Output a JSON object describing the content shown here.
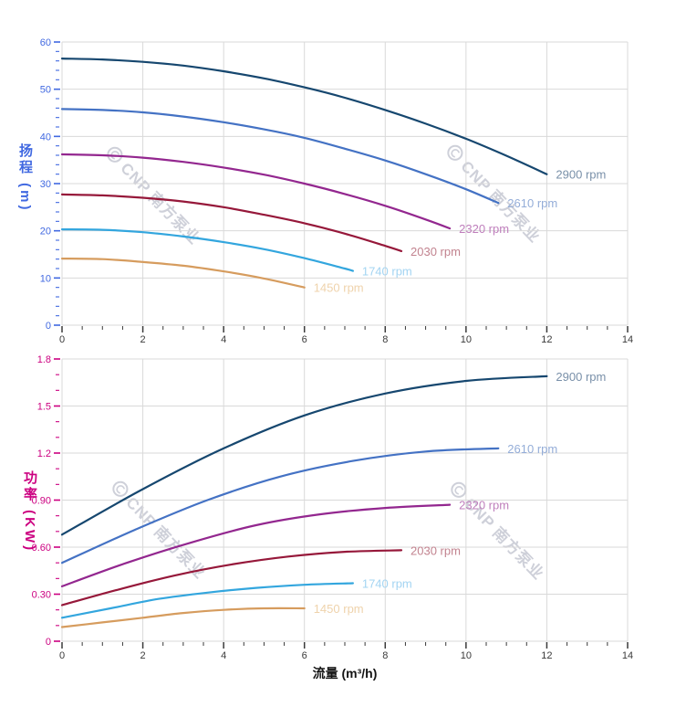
{
  "figure": {
    "xlabel": "流量 (m³/h)"
  },
  "watermark": {
    "text": "CNP 南方泵业"
  },
  "chart_data": [
    {
      "id": "head-curves",
      "type": "line",
      "title": "",
      "xlabel": "",
      "ylabel": "扬程 (m)",
      "xlim": [
        0,
        14
      ],
      "ylim": [
        0,
        60
      ],
      "grid": true,
      "legend_position": "end-of-line-labels",
      "axis_color": "#4169E1",
      "x_tick_labels": [
        "0",
        "2",
        "4",
        "6",
        "8",
        "10",
        "12",
        "14"
      ],
      "x_minor_step": 0.5,
      "y_tick_labels": [
        "0",
        "10",
        "20",
        "30",
        "40",
        "50",
        "60"
      ],
      "y_minor_step": 2,
      "series": [
        {
          "name": "2900 rpm",
          "color": "#16476F",
          "label_color": "#7990A9",
          "points": [
            [
              0,
              56.5
            ],
            [
              1,
              56.3
            ],
            [
              2,
              55.8
            ],
            [
              3,
              55.0
            ],
            [
              4,
              53.8
            ],
            [
              5,
              52.3
            ],
            [
              6,
              50.4
            ],
            [
              7,
              48.2
            ],
            [
              8,
              45.6
            ],
            [
              9,
              42.7
            ],
            [
              10,
              39.5
            ],
            [
              11,
              35.9
            ],
            [
              12,
              32.0
            ]
          ]
        },
        {
          "name": "2610 rpm",
          "color": "#4472C4",
          "label_color": "#94ADD8",
          "points": [
            [
              0,
              45.8
            ],
            [
              1,
              45.6
            ],
            [
              2,
              45.1
            ],
            [
              3,
              44.2
            ],
            [
              4,
              43.0
            ],
            [
              5,
              41.5
            ],
            [
              6,
              39.7
            ],
            [
              7,
              37.4
            ],
            [
              8,
              34.9
            ],
            [
              9,
              32.0
            ],
            [
              10,
              28.8
            ],
            [
              10.8,
              25.9
            ]
          ]
        },
        {
          "name": "2320 rpm",
          "color": "#93278F",
          "label_color": "#BF7FBC",
          "points": [
            [
              0,
              36.2
            ],
            [
              1,
              36.0
            ],
            [
              2,
              35.5
            ],
            [
              3,
              34.6
            ],
            [
              4,
              33.4
            ],
            [
              5,
              31.9
            ],
            [
              6,
              30.0
            ],
            [
              7,
              27.8
            ],
            [
              8,
              25.3
            ],
            [
              9,
              22.4
            ],
            [
              9.6,
              20.5
            ]
          ]
        },
        {
          "name": "2030 rpm",
          "color": "#96183A",
          "label_color": "#C2838F",
          "points": [
            [
              0,
              27.7
            ],
            [
              1,
              27.5
            ],
            [
              2,
              27.0
            ],
            [
              3,
              26.2
            ],
            [
              4,
              25.0
            ],
            [
              5,
              23.4
            ],
            [
              6,
              21.6
            ],
            [
              7,
              19.4
            ],
            [
              8,
              16.8
            ],
            [
              8.4,
              15.7
            ]
          ]
        },
        {
          "name": "1740 rpm",
          "color": "#33A6DE",
          "label_color": "#A3D4F2",
          "points": [
            [
              0,
              20.3
            ],
            [
              1,
              20.2
            ],
            [
              2,
              19.7
            ],
            [
              3,
              18.8
            ],
            [
              4,
              17.6
            ],
            [
              5,
              16.1
            ],
            [
              6,
              14.2
            ],
            [
              7,
              12.0
            ],
            [
              7.2,
              11.5
            ]
          ]
        },
        {
          "name": "1450 rpm",
          "color": "#D69C5E",
          "label_color": "#EFD3AC",
          "points": [
            [
              0,
              14.1
            ],
            [
              1,
              14.0
            ],
            [
              2,
              13.4
            ],
            [
              3,
              12.6
            ],
            [
              4,
              11.4
            ],
            [
              5,
              9.9
            ],
            [
              6,
              8.0
            ]
          ]
        }
      ]
    },
    {
      "id": "power-curves",
      "type": "line",
      "title": "",
      "xlabel": "",
      "ylabel": "功率 (KW)",
      "xlim": [
        0,
        14
      ],
      "ylim": [
        0,
        1.8
      ],
      "grid": true,
      "legend_position": "end-of-line-labels",
      "axis_color": "#CC0080",
      "x_tick_labels": [
        "0",
        "2",
        "4",
        "6",
        "8",
        "10",
        "12",
        "14"
      ],
      "x_minor_step": 0.5,
      "y_tick_labels": [
        "0",
        "0.30",
        "0.60",
        "0.90",
        "1.2",
        "1.5",
        "1.8"
      ],
      "y_minor_step": 0.1,
      "series": [
        {
          "name": "2900 rpm",
          "color": "#16476F",
          "label_color": "#7990A9",
          "points": [
            [
              0,
              0.68
            ],
            [
              2,
              0.97
            ],
            [
              4,
              1.23
            ],
            [
              6,
              1.44
            ],
            [
              8,
              1.58
            ],
            [
              10,
              1.66
            ],
            [
              12,
              1.69
            ]
          ]
        },
        {
          "name": "2610 rpm",
          "color": "#4472C4",
          "label_color": "#94ADD8",
          "points": [
            [
              0,
              0.5
            ],
            [
              1.8,
              0.71
            ],
            [
              3.6,
              0.9
            ],
            [
              5.4,
              1.05
            ],
            [
              7.2,
              1.15
            ],
            [
              9,
              1.21
            ],
            [
              10.8,
              1.23
            ]
          ]
        },
        {
          "name": "2320 rpm",
          "color": "#93278F",
          "label_color": "#BF7FBC",
          "points": [
            [
              0,
              0.35
            ],
            [
              1.6,
              0.5
            ],
            [
              3.2,
              0.63
            ],
            [
              4.8,
              0.74
            ],
            [
              6.4,
              0.81
            ],
            [
              8,
              0.85
            ],
            [
              9.6,
              0.87
            ]
          ]
        },
        {
          "name": "2030 rpm",
          "color": "#96183A",
          "label_color": "#C2838F",
          "points": [
            [
              0,
              0.23
            ],
            [
              1.4,
              0.33
            ],
            [
              2.8,
              0.42
            ],
            [
              4.2,
              0.49
            ],
            [
              5.6,
              0.54
            ],
            [
              7,
              0.57
            ],
            [
              8.4,
              0.58
            ]
          ]
        },
        {
          "name": "1740 rpm",
          "color": "#33A6DE",
          "label_color": "#A3D4F2",
          "points": [
            [
              0,
              0.15
            ],
            [
              1.2,
              0.21
            ],
            [
              2.4,
              0.27
            ],
            [
              3.6,
              0.31
            ],
            [
              4.8,
              0.34
            ],
            [
              6,
              0.36
            ],
            [
              7.2,
              0.37
            ]
          ]
        },
        {
          "name": "1450 rpm",
          "color": "#D69C5E",
          "label_color": "#EFD3AC",
          "points": [
            [
              0,
              0.09
            ],
            [
              1,
              0.12
            ],
            [
              2,
              0.15
            ],
            [
              3,
              0.18
            ],
            [
              4,
              0.2
            ],
            [
              5,
              0.21
            ],
            [
              6,
              0.21
            ]
          ]
        }
      ]
    }
  ]
}
